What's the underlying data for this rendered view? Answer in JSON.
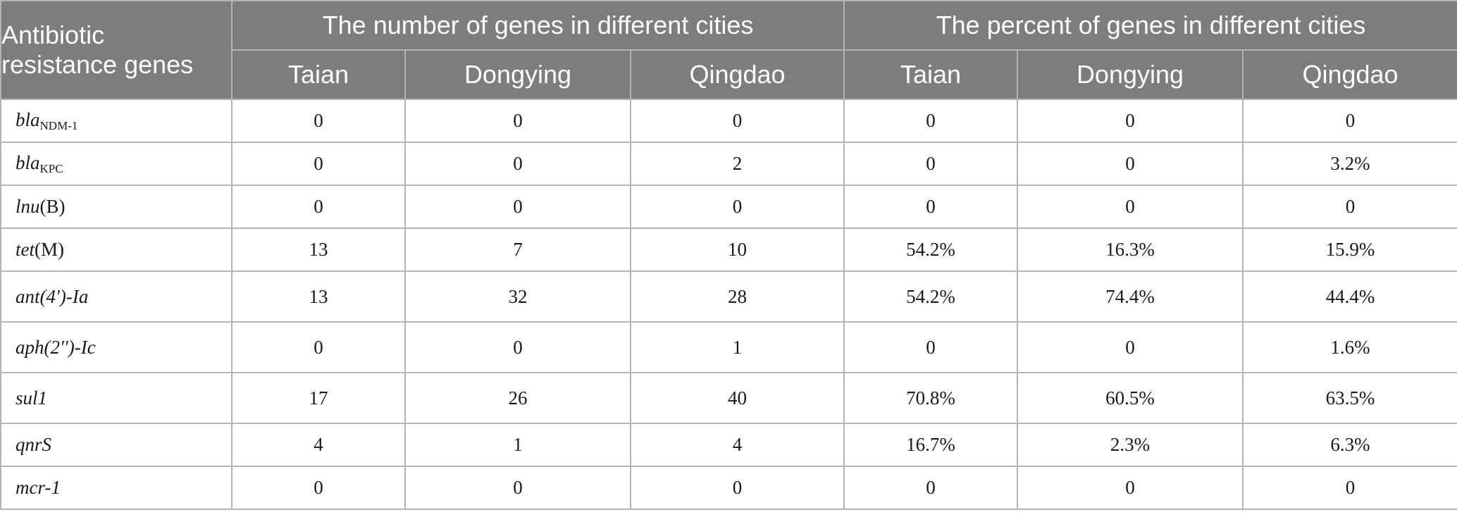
{
  "table": {
    "gene_header_line1": "Antibiotic",
    "gene_header_line2": "resistance genes",
    "number_group_header": "The number of genes in different cities",
    "percent_group_header": "The percent of genes in different cities",
    "cities": [
      "Taian",
      "Dongying",
      "Qingdao"
    ],
    "rows": [
      {
        "gene": "bla",
        "sub": "NDM-1",
        "suffix": "",
        "counts": [
          "0",
          "0",
          "0"
        ],
        "percents": [
          "0",
          "0",
          "0"
        ]
      },
      {
        "gene": "bla",
        "sub": "KPC",
        "suffix": "",
        "counts": [
          "0",
          "0",
          "2"
        ],
        "percents": [
          "0",
          "0",
          "3.2%"
        ]
      },
      {
        "gene": "lnu",
        "sub": "",
        "suffix": "(B)",
        "counts": [
          "0",
          "0",
          "0"
        ],
        "percents": [
          "0",
          "0",
          "0"
        ]
      },
      {
        "gene": "tet",
        "sub": "",
        "suffix": "(M)",
        "counts": [
          "13",
          "7",
          "10"
        ],
        "percents": [
          "54.2%",
          "16.3%",
          "15.9%"
        ]
      },
      {
        "gene": "ant(4′)-Ia",
        "sub": "",
        "suffix": "",
        "counts": [
          "13",
          "32",
          "28"
        ],
        "percents": [
          "54.2%",
          "74.4%",
          "44.4%"
        ]
      },
      {
        "gene": "aph(2′′)-Ic",
        "sub": "",
        "suffix": "",
        "counts": [
          "0",
          "0",
          "1"
        ],
        "percents": [
          "0",
          "0",
          "1.6%"
        ]
      },
      {
        "gene": "sul1",
        "sub": "",
        "suffix": "",
        "counts": [
          "17",
          "26",
          "40"
        ],
        "percents": [
          "70.8%",
          "60.5%",
          "63.5%"
        ]
      },
      {
        "gene": "qnrS",
        "sub": "",
        "suffix": "",
        "counts": [
          "4",
          "1",
          "4"
        ],
        "percents": [
          "16.7%",
          "2.3%",
          "6.3%"
        ]
      },
      {
        "gene": "mcr-1",
        "sub": "",
        "suffix": "",
        "counts": [
          "0",
          "0",
          "0"
        ],
        "percents": [
          "0",
          "0",
          "0"
        ]
      }
    ]
  }
}
